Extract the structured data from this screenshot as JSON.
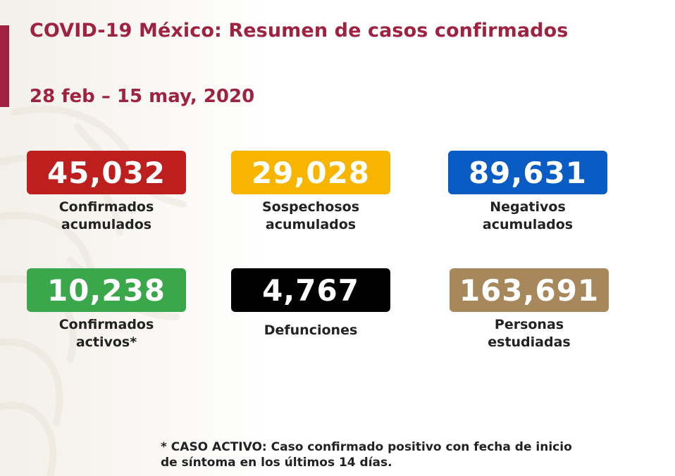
{
  "header": {
    "title": "COVID-19 México: Resumen de casos confirmados",
    "date_range": "28 feb – 15 may, 2020"
  },
  "colors": {
    "accent": "#9f2241",
    "confirmados": "#bd1e1e",
    "sospechosos": "#f7b500",
    "negativos": "#0a5cc5",
    "activos": "#3aa84a",
    "defunciones": "#000000",
    "estudiadas": "#a6885c"
  },
  "stats": {
    "confirmados": {
      "value": "45,032",
      "label_line1": "Confirmados",
      "label_line2": "acumulados"
    },
    "sospechosos": {
      "value": "29,028",
      "label_line1": "Sospechosos",
      "label_line2": "acumulados"
    },
    "negativos": {
      "value": "89,631",
      "label_line1": "Negativos",
      "label_line2": "acumulados"
    },
    "activos": {
      "value": "10,238",
      "label_line1": "Confirmados",
      "label_line2": "activos*"
    },
    "defunciones": {
      "value": "4,767",
      "label_line1": "Defunciones"
    },
    "estudiadas": {
      "value": "163,691",
      "label_line1": "Personas",
      "label_line2": "estudiadas"
    }
  },
  "footnote": {
    "line1": "* CASO ACTIVO: Caso confirmado positivo con fecha de inicio",
    "line2": "de síntoma en los últimos 14 días."
  }
}
